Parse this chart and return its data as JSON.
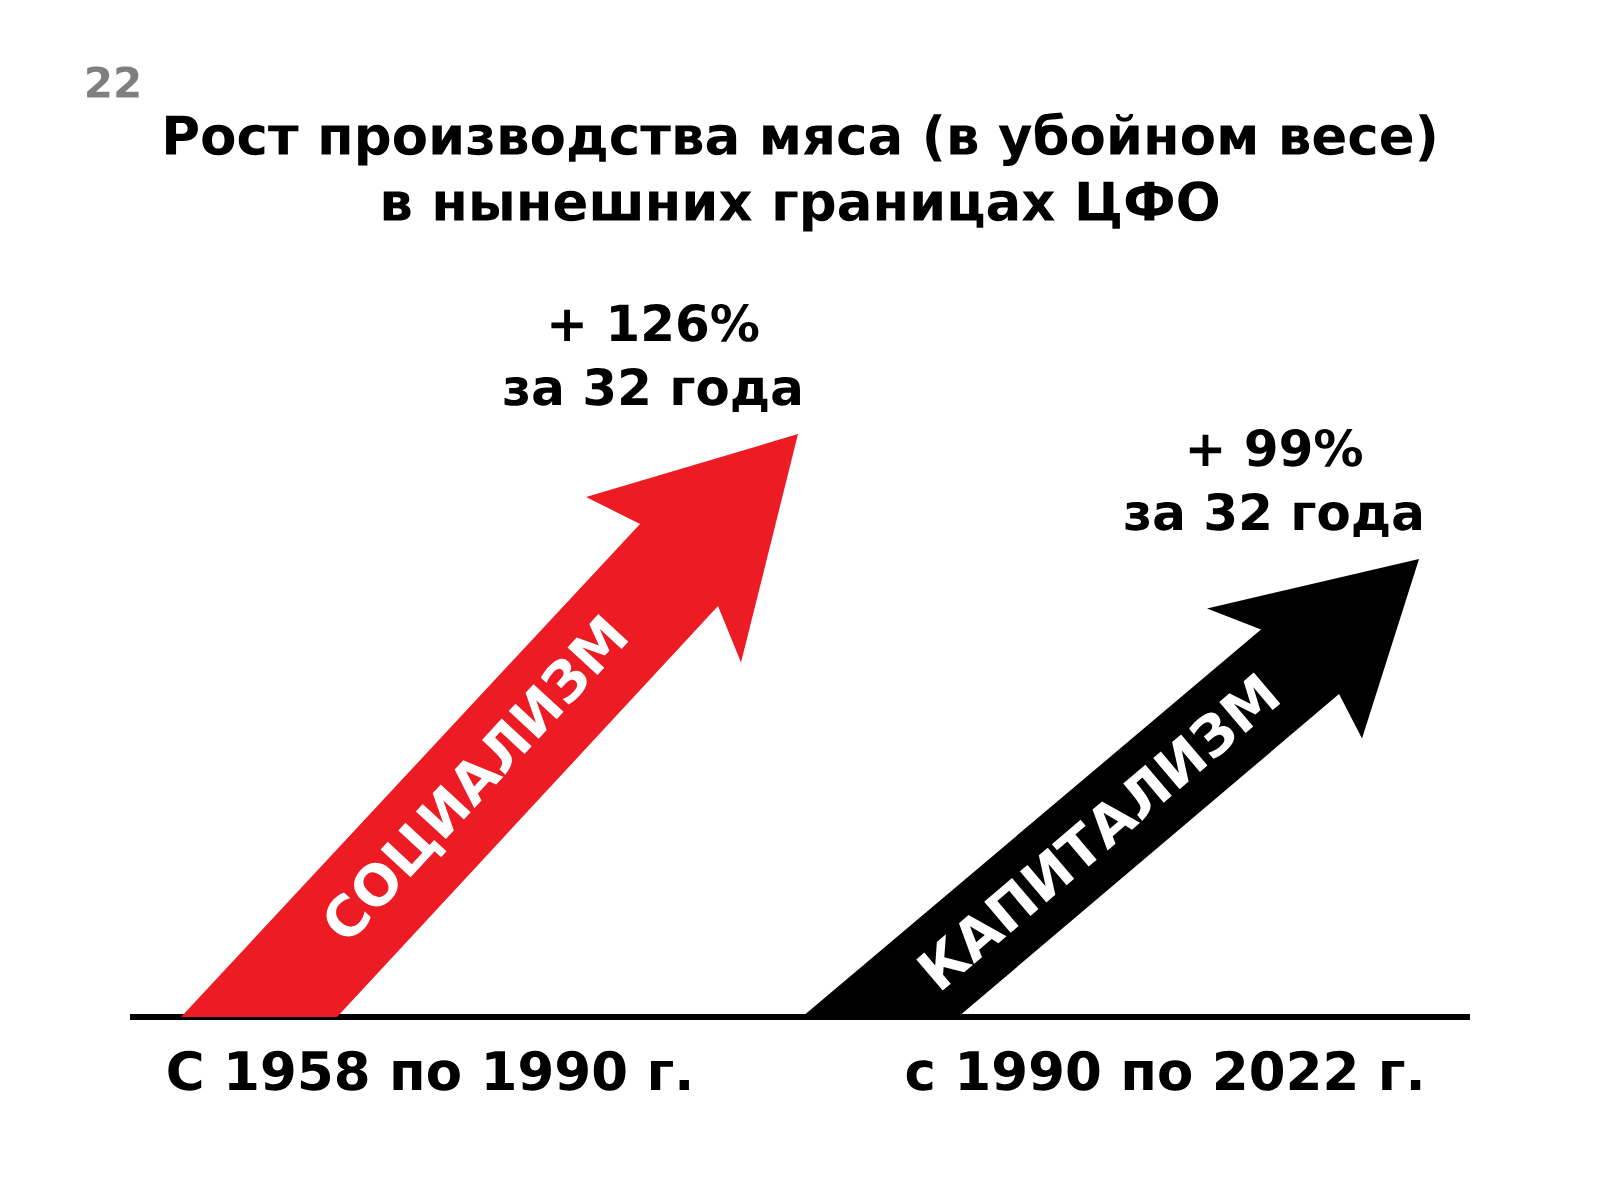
{
  "chart_data": {
    "type": "other",
    "title": "Рост производства мяса (в убойном весе) в нынешних границах ЦФО",
    "categories": [
      "С 1958 по 1990 г.",
      "с 1990 по 2022 г."
    ],
    "values": [
      126,
      99
    ],
    "colors": [
      "#ed1c24",
      "#000000"
    ],
    "value_labels": [
      "+ 126%",
      "+ 99%"
    ],
    "annotations": [
      {
        "text": "СОЦИАЛИЗМ",
        "x": "С 1958 по 1990 г."
      },
      {
        "text": "за 32 года",
        "x": "С 1958 по 1990 г."
      },
      {
        "text": "КАПИТАЛИЗМ",
        "x": "с 1990 по 2022 г."
      },
      {
        "text": "за 32 года",
        "x": "с 1990 по 2022 г."
      },
      "22"
    ]
  }
}
